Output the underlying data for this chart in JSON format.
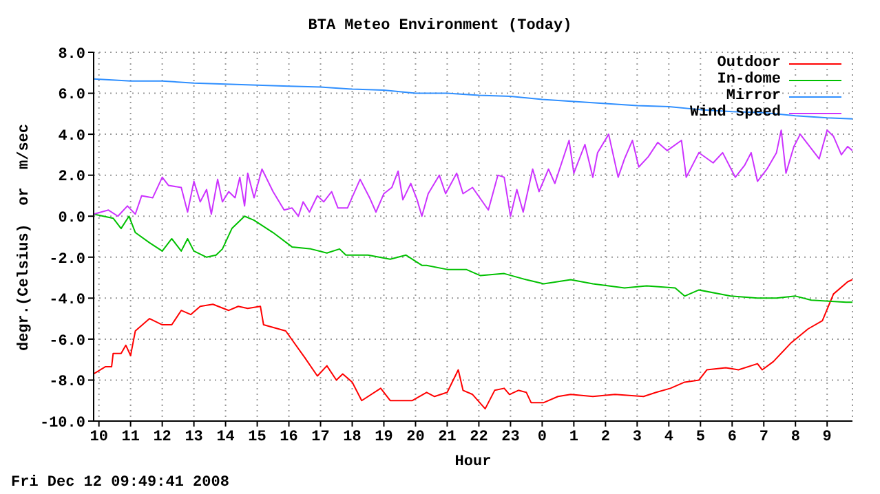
{
  "chart_data": {
    "type": "line",
    "title": "BTA Meteo Environment (Today)",
    "xlabel": "Hour",
    "ylabel": "degr.(Celsius)  or  m/sec",
    "annotations": [
      "Fri Dec 12 09:49:41 2008"
    ],
    "xlim": [
      "2008-12-11T09:50",
      "2008-12-12T09:48"
    ],
    "xticks": [
      {
        "value": "2008-12-11T10:00",
        "label": "10"
      },
      {
        "value": "2008-12-11T11:00",
        "label": "11"
      },
      {
        "value": "2008-12-11T12:00",
        "label": "12"
      },
      {
        "value": "2008-12-11T13:00",
        "label": "13"
      },
      {
        "value": "2008-12-11T14:00",
        "label": "14"
      },
      {
        "value": "2008-12-11T15:00",
        "label": "15"
      },
      {
        "value": "2008-12-11T16:00",
        "label": "16"
      },
      {
        "value": "2008-12-11T17:00",
        "label": "17"
      },
      {
        "value": "2008-12-11T18:00",
        "label": "18"
      },
      {
        "value": "2008-12-11T19:00",
        "label": "19"
      },
      {
        "value": "2008-12-11T20:00",
        "label": "20"
      },
      {
        "value": "2008-12-11T21:00",
        "label": "21"
      },
      {
        "value": "2008-12-11T22:00",
        "label": "22"
      },
      {
        "value": "2008-12-11T23:00",
        "label": "23"
      },
      {
        "value": "2008-12-12T00:00",
        "label": "0"
      },
      {
        "value": "2008-12-12T01:00",
        "label": "1"
      },
      {
        "value": "2008-12-12T02:00",
        "label": "2"
      },
      {
        "value": "2008-12-12T03:00",
        "label": "3"
      },
      {
        "value": "2008-12-12T04:00",
        "label": "4"
      },
      {
        "value": "2008-12-12T05:00",
        "label": "5"
      },
      {
        "value": "2008-12-12T06:00",
        "label": "6"
      },
      {
        "value": "2008-12-12T07:00",
        "label": "7"
      },
      {
        "value": "2008-12-12T08:00",
        "label": "8"
      },
      {
        "value": "2008-12-12T09:00",
        "label": "9"
      }
    ],
    "ylim": [
      -10,
      8
    ],
    "yticks": [
      {
        "value": -10,
        "label": "-10.0"
      },
      {
        "value": -8,
        "label": "-8.0"
      },
      {
        "value": -6,
        "label": "-6.0"
      },
      {
        "value": -4,
        "label": "-4.0"
      },
      {
        "value": -2,
        "label": "-2.0"
      },
      {
        "value": 0,
        "label": "0.0"
      },
      {
        "value": 2,
        "label": "2.0"
      },
      {
        "value": 4,
        "label": "4.0"
      },
      {
        "value": 6,
        "label": "6.0"
      },
      {
        "value": 8,
        "label": "8.0"
      }
    ],
    "grid": true,
    "legend": "top right",
    "series": [
      {
        "name": "Outdoor",
        "color": "#ff0000",
        "x": [
          "2008-12-11T09:50",
          "2008-12-11T10:12",
          "2008-12-11T10:24",
          "2008-12-11T10:27",
          "2008-12-11T10:42",
          "2008-12-11T10:51",
          "2008-12-11T11:00",
          "2008-12-11T11:09",
          "2008-12-11T11:36",
          "2008-12-11T12:00",
          "2008-12-11T12:18",
          "2008-12-11T12:36",
          "2008-12-11T12:54",
          "2008-12-11T13:12",
          "2008-12-11T13:36",
          "2008-12-11T14:06",
          "2008-12-11T14:24",
          "2008-12-11T14:42",
          "2008-12-11T15:06",
          "2008-12-11T15:12",
          "2008-12-11T15:54",
          "2008-12-11T16:30",
          "2008-12-11T16:54",
          "2008-12-11T17:12",
          "2008-12-11T17:30",
          "2008-12-11T17:42",
          "2008-12-11T18:00",
          "2008-12-11T18:18",
          "2008-12-11T18:54",
          "2008-12-11T19:12",
          "2008-12-11T19:54",
          "2008-12-11T20:21",
          "2008-12-11T20:36",
          "2008-12-11T21:00",
          "2008-12-11T21:21",
          "2008-12-11T21:30",
          "2008-12-11T21:48",
          "2008-12-11T22:12",
          "2008-12-11T22:30",
          "2008-12-11T22:48",
          "2008-12-11T22:58",
          "2008-12-11T23:15",
          "2008-12-11T23:30",
          "2008-12-11T23:39",
          "2008-12-12T00:03",
          "2008-12-12T00:30",
          "2008-12-12T00:54",
          "2008-12-12T01:36",
          "2008-12-12T02:18",
          "2008-12-12T03:12",
          "2008-12-12T03:36",
          "2008-12-12T04:03",
          "2008-12-12T04:30",
          "2008-12-12T04:57",
          "2008-12-12T05:12",
          "2008-12-12T05:48",
          "2008-12-12T06:12",
          "2008-12-12T06:48",
          "2008-12-12T06:57",
          "2008-12-12T07:18",
          "2008-12-12T07:51",
          "2008-12-12T08:24",
          "2008-12-12T08:51",
          "2008-12-12T09:12",
          "2008-12-12T09:39",
          "2008-12-12T09:48"
        ],
        "values": [
          -7.7,
          -7.35,
          -7.35,
          -6.7,
          -6.7,
          -6.3,
          -6.8,
          -5.6,
          -5.0,
          -5.3,
          -5.3,
          -4.6,
          -4.8,
          -4.4,
          -4.3,
          -4.6,
          -4.4,
          -4.5,
          -4.4,
          -5.3,
          -5.6,
          -6.9,
          -7.8,
          -7.3,
          -8.0,
          -7.7,
          -8.1,
          -9.0,
          -8.4,
          -9.0,
          -9.0,
          -8.6,
          -8.8,
          -8.6,
          -7.5,
          -8.5,
          -8.7,
          -9.4,
          -8.5,
          -8.4,
          -8.7,
          -8.5,
          -8.6,
          -9.1,
          -9.1,
          -8.8,
          -8.7,
          -8.8,
          -8.7,
          -8.8,
          -8.6,
          -8.4,
          -8.1,
          -8.0,
          -7.5,
          -7.4,
          -7.5,
          -7.2,
          -7.5,
          -7.1,
          -6.2,
          -5.5,
          -5.1,
          -3.8,
          -3.2,
          -3.1
        ]
      },
      {
        "name": "In-dome",
        "color": "#00c000",
        "x": [
          "2008-12-11T09:50",
          "2008-12-11T10:27",
          "2008-12-11T10:42",
          "2008-12-11T10:57",
          "2008-12-11T11:09",
          "2008-12-11T11:36",
          "2008-12-11T12:00",
          "2008-12-11T12:18",
          "2008-12-11T12:36",
          "2008-12-11T12:48",
          "2008-12-11T13:00",
          "2008-12-11T13:24",
          "2008-12-11T13:42",
          "2008-12-11T13:54",
          "2008-12-11T14:12",
          "2008-12-11T14:36",
          "2008-12-11T14:54",
          "2008-12-11T15:30",
          "2008-12-11T16:06",
          "2008-12-11T16:42",
          "2008-12-11T17:12",
          "2008-12-11T17:36",
          "2008-12-11T17:48",
          "2008-12-11T18:30",
          "2008-12-11T19:12",
          "2008-12-11T19:42",
          "2008-12-11T20:12",
          "2008-12-11T20:21",
          "2008-12-11T21:00",
          "2008-12-11T21:36",
          "2008-12-11T22:03",
          "2008-12-11T22:48",
          "2008-12-11T23:30",
          "2008-12-12T00:03",
          "2008-12-12T00:54",
          "2008-12-12T01:36",
          "2008-12-12T02:36",
          "2008-12-12T03:18",
          "2008-12-12T04:12",
          "2008-12-12T04:30",
          "2008-12-12T04:57",
          "2008-12-12T05:57",
          "2008-12-12T06:48",
          "2008-12-12T07:24",
          "2008-12-12T08:00",
          "2008-12-12T08:30",
          "2008-12-12T09:36",
          "2008-12-12T09:48"
        ],
        "values": [
          0.1,
          -0.1,
          -0.6,
          0.0,
          -0.8,
          -1.3,
          -1.7,
          -1.1,
          -1.7,
          -1.1,
          -1.7,
          -2.0,
          -1.9,
          -1.6,
          -0.6,
          0.0,
          -0.2,
          -0.8,
          -1.5,
          -1.6,
          -1.8,
          -1.6,
          -1.9,
          -1.9,
          -2.1,
          -1.9,
          -2.4,
          -2.4,
          -2.6,
          -2.6,
          -2.9,
          -2.8,
          -3.1,
          -3.3,
          -3.1,
          -3.3,
          -3.5,
          -3.4,
          -3.5,
          -3.9,
          -3.6,
          -3.9,
          -4.0,
          -4.0,
          -3.9,
          -4.1,
          -4.2,
          -4.2
        ]
      },
      {
        "name": "Mirror",
        "color": "#2f8fff",
        "x": [
          "2008-12-11T09:50",
          "2008-12-11T11:00",
          "2008-12-11T12:00",
          "2008-12-11T13:00",
          "2008-12-11T14:00",
          "2008-12-11T15:00",
          "2008-12-11T16:00",
          "2008-12-11T17:00",
          "2008-12-11T18:00",
          "2008-12-11T19:00",
          "2008-12-11T20:00",
          "2008-12-11T21:00",
          "2008-12-11T22:00",
          "2008-12-11T23:00",
          "2008-12-12T00:00",
          "2008-12-12T01:00",
          "2008-12-12T02:00",
          "2008-12-12T03:00",
          "2008-12-12T04:00",
          "2008-12-12T05:00",
          "2008-12-12T06:00",
          "2008-12-12T07:00",
          "2008-12-12T08:00",
          "2008-12-12T09:00",
          "2008-12-12T09:48"
        ],
        "values": [
          6.7,
          6.6,
          6.6,
          6.5,
          6.45,
          6.4,
          6.35,
          6.3,
          6.2,
          6.15,
          6.0,
          6.0,
          5.9,
          5.85,
          5.7,
          5.6,
          5.5,
          5.4,
          5.35,
          5.2,
          5.1,
          5.05,
          4.9,
          4.8,
          4.75
        ]
      },
      {
        "name": "Wind speed",
        "color": "#cc33ff",
        "x": [
          "2008-12-11T09:50",
          "2008-12-11T10:18",
          "2008-12-11T10:36",
          "2008-12-11T10:54",
          "2008-12-11T11:09",
          "2008-12-11T11:21",
          "2008-12-11T11:42",
          "2008-12-11T12:00",
          "2008-12-11T12:12",
          "2008-12-11T12:36",
          "2008-12-11T12:48",
          "2008-12-11T13:00",
          "2008-12-11T13:12",
          "2008-12-11T13:24",
          "2008-12-11T13:33",
          "2008-12-11T13:45",
          "2008-12-11T13:54",
          "2008-12-11T14:06",
          "2008-12-11T14:18",
          "2008-12-11T14:27",
          "2008-12-11T14:36",
          "2008-12-11T14:42",
          "2008-12-11T14:54",
          "2008-12-11T15:09",
          "2008-12-11T15:30",
          "2008-12-11T15:51",
          "2008-12-11T16:06",
          "2008-12-11T16:18",
          "2008-12-11T16:27",
          "2008-12-11T16:39",
          "2008-12-11T16:54",
          "2008-12-11T17:06",
          "2008-12-11T17:21",
          "2008-12-11T17:33",
          "2008-12-11T17:51",
          "2008-12-11T18:15",
          "2008-12-11T18:33",
          "2008-12-11T18:45",
          "2008-12-11T19:00",
          "2008-12-11T19:15",
          "2008-12-11T19:27",
          "2008-12-11T19:36",
          "2008-12-11T19:51",
          "2008-12-11T20:03",
          "2008-12-11T20:12",
          "2008-12-11T20:24",
          "2008-12-11T20:45",
          "2008-12-11T20:57",
          "2008-12-11T21:18",
          "2008-12-11T21:30",
          "2008-12-11T21:48",
          "2008-12-11T22:18",
          "2008-12-11T22:36",
          "2008-12-11T22:48",
          "2008-12-11T23:00",
          "2008-12-11T23:12",
          "2008-12-11T23:24",
          "2008-12-11T23:42",
          "2008-12-11T23:54",
          "2008-12-12T00:12",
          "2008-12-12T00:24",
          "2008-12-12T00:51",
          "2008-12-12T01:00",
          "2008-12-12T01:21",
          "2008-12-12T01:36",
          "2008-12-12T01:45",
          "2008-12-12T02:06",
          "2008-12-12T02:24",
          "2008-12-12T02:36",
          "2008-12-12T02:51",
          "2008-12-12T03:03",
          "2008-12-12T03:21",
          "2008-12-12T03:39",
          "2008-12-12T03:57",
          "2008-12-12T04:24",
          "2008-12-12T04:33",
          "2008-12-12T04:57",
          "2008-12-12T05:24",
          "2008-12-12T05:42",
          "2008-12-12T06:06",
          "2008-12-12T06:24",
          "2008-12-12T06:36",
          "2008-12-12T06:48",
          "2008-12-12T07:06",
          "2008-12-12T07:24",
          "2008-12-12T07:33",
          "2008-12-12T07:42",
          "2008-12-12T07:57",
          "2008-12-12T08:09",
          "2008-12-12T08:45",
          "2008-12-12T09:00",
          "2008-12-12T09:12",
          "2008-12-12T09:27",
          "2008-12-12T09:39",
          "2008-12-12T09:48"
        ],
        "values": [
          0.1,
          0.3,
          0.0,
          0.5,
          0.1,
          1.0,
          0.9,
          1.9,
          1.5,
          1.4,
          0.2,
          1.7,
          0.7,
          1.3,
          0.1,
          1.8,
          0.7,
          1.2,
          0.9,
          1.9,
          0.5,
          2.1,
          0.9,
          2.3,
          1.2,
          0.3,
          0.4,
          0.0,
          0.7,
          0.2,
          1.0,
          0.7,
          1.2,
          0.4,
          0.4,
          1.8,
          0.9,
          0.2,
          1.1,
          1.4,
          2.2,
          0.8,
          1.6,
          0.8,
          0.0,
          1.1,
          2.0,
          1.1,
          2.1,
          1.1,
          1.4,
          0.3,
          2.0,
          1.9,
          0.0,
          1.3,
          0.2,
          2.3,
          1.2,
          2.3,
          1.6,
          3.7,
          2.1,
          3.5,
          1.9,
          3.1,
          4.0,
          1.9,
          2.8,
          3.7,
          2.4,
          2.9,
          3.6,
          3.2,
          3.7,
          1.9,
          3.1,
          2.6,
          3.1,
          1.9,
          2.5,
          3.1,
          1.7,
          2.3,
          3.1,
          4.2,
          2.1,
          3.4,
          4.0,
          2.8,
          4.2,
          3.9,
          3.0,
          3.4,
          3.2
        ]
      }
    ]
  }
}
